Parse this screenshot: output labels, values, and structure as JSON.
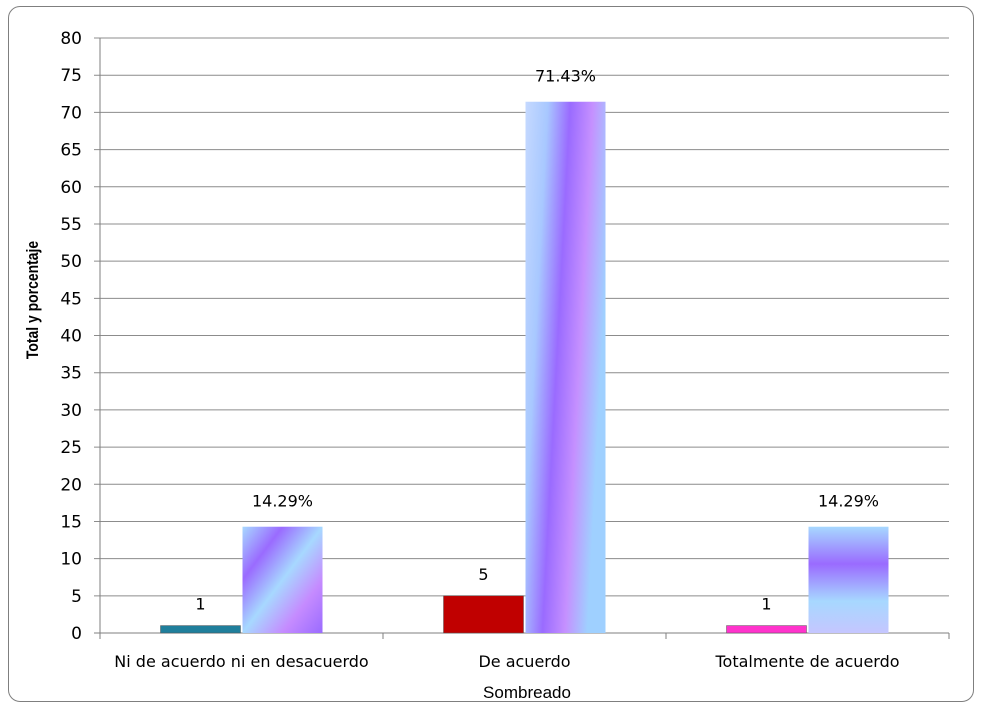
{
  "chart_data": {
    "type": "bar",
    "xlabel": "Sombreado",
    "ylabel": "Total y porcentaje",
    "ylim": [
      0,
      80
    ],
    "ytick_step": 5,
    "grid": true,
    "categories": [
      "Ni de acuerdo ni en desacuerdo",
      "De acuerdo",
      "Totalmente de acuerdo"
    ],
    "series": [
      {
        "values": [
          1,
          5,
          1
        ],
        "labels": [
          "1",
          "5",
          "1"
        ],
        "colors": [
          "#1f7f9c",
          "#c00000",
          "#ff33cc"
        ]
      },
      {
        "values": [
          14.29,
          71.43,
          14.29
        ],
        "labels": [
          "14.29%",
          "71.43%",
          "14.29%"
        ],
        "colors": [
          "#a080ff",
          "#a080ff",
          "#a080ff"
        ]
      }
    ]
  }
}
